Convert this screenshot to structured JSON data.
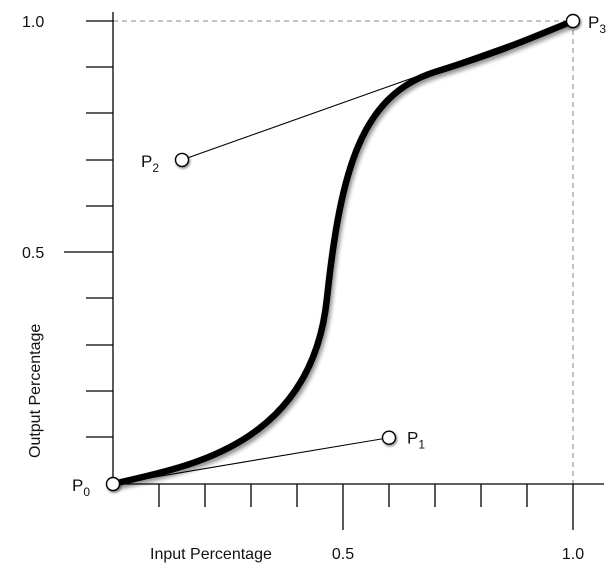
{
  "axes": {
    "x_title": "Input Percentage",
    "y_title": "Output Percentage",
    "x_ticks": [
      "0.5",
      "1.0"
    ],
    "y_ticks": [
      "1.0",
      "0.5"
    ]
  },
  "points": [
    {
      "letter": "P",
      "sub": "0",
      "x": 0.0,
      "y": 0.0
    },
    {
      "letter": "P",
      "sub": "1",
      "x": 0.6,
      "y": 0.1
    },
    {
      "letter": "P",
      "sub": "2",
      "x": 0.15,
      "y": 0.7
    },
    {
      "letter": "P",
      "sub": "3",
      "x": 1.0,
      "y": 1.0
    }
  ],
  "colors": {
    "curve": "#000000",
    "axis": "#000000",
    "guide": "#777777",
    "handle_fill": "#ffffff"
  }
}
